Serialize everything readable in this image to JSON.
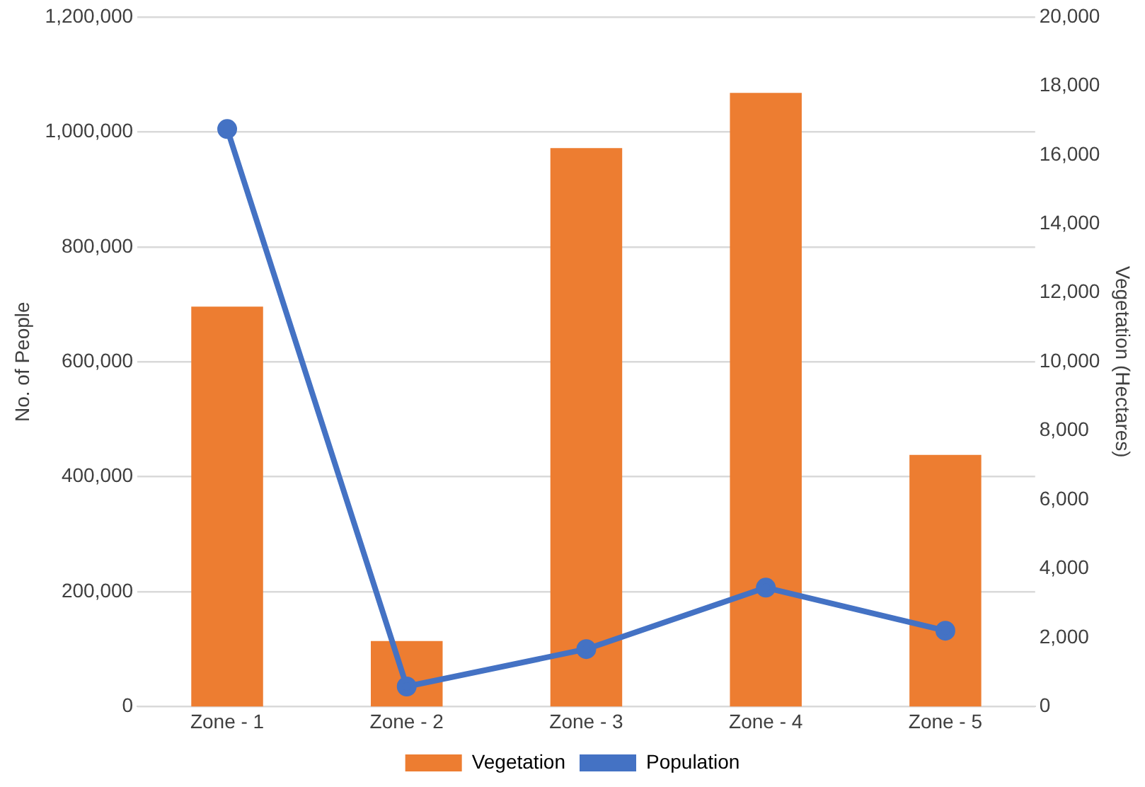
{
  "chart_data": {
    "type": "bar",
    "ylabel": "No. of People",
    "y2label": "Vegetation (Hectares)",
    "categories": [
      "Zone - 1",
      "Zone - 2",
      "Zone - 3",
      "Zone - 4",
      "Zone - 5"
    ],
    "series": [
      {
        "name": "Vegetation",
        "axis": "y2",
        "color": "#ed7d31",
        "values": [
          11600,
          1900,
          16200,
          17800,
          7300
        ]
      },
      {
        "name": "Population",
        "type": "line",
        "axis": "y",
        "color": "#4472c4",
        "values": [
          1005000,
          35000,
          100000,
          207000,
          132000
        ]
      }
    ],
    "ylim": [
      0,
      1200000
    ],
    "yticks": [
      {
        "value": 0,
        "label": "0"
      },
      {
        "value": 200000,
        "label": "200,000"
      },
      {
        "value": 400000,
        "label": "400,000"
      },
      {
        "value": 600000,
        "label": "600,000"
      },
      {
        "value": 800000,
        "label": "800,000"
      },
      {
        "value": 1000000,
        "label": "1,000,000"
      },
      {
        "value": 1200000,
        "label": "1,200,000"
      }
    ],
    "y2lim": [
      0,
      20000
    ],
    "y2ticks": [
      {
        "value": 0,
        "label": "0"
      },
      {
        "value": 2000,
        "label": "2,000"
      },
      {
        "value": 4000,
        "label": "4,000"
      },
      {
        "value": 6000,
        "label": "6,000"
      },
      {
        "value": 8000,
        "label": "8,000"
      },
      {
        "value": 10000,
        "label": "10,000"
      },
      {
        "value": 12000,
        "label": "12,000"
      },
      {
        "value": 14000,
        "label": "14,000"
      },
      {
        "value": 16000,
        "label": "16,000"
      },
      {
        "value": 18000,
        "label": "18,000"
      },
      {
        "value": 20000,
        "label": "20,000"
      }
    ],
    "grid": "y",
    "legend": "bottom",
    "marker": "circle",
    "line_style": "solid"
  }
}
